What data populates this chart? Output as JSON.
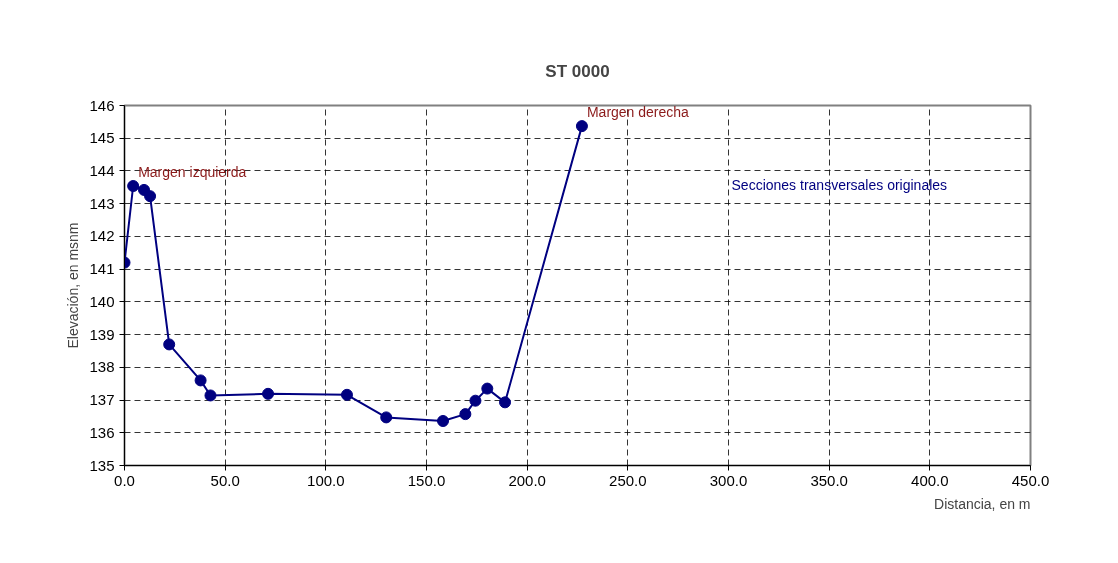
{
  "chart_data": {
    "type": "line",
    "title": "ST 0000",
    "xlabel": "Distancia, en m",
    "ylabel": "Elevación, en msnm",
    "x": [
      0,
      4.3,
      9.7,
      12.7,
      22.2,
      37.8,
      42.7,
      71.3,
      110.5,
      130,
      158.2,
      169.3,
      174.3,
      180.2,
      189,
      227.2
    ],
    "series": [
      {
        "name": "Secciones transversales originales",
        "color": "#000080",
        "values": [
          141.2,
          143.54,
          143.42,
          143.23,
          138.7,
          137.6,
          137.14,
          137.19,
          137.16,
          136.47,
          136.36,
          136.57,
          136.98,
          137.35,
          136.93,
          145.37
        ]
      }
    ],
    "xlim": [
      0,
      450
    ],
    "xticks": [
      {
        "value": 0,
        "label": "0.0"
      },
      {
        "value": 50,
        "label": "50.0"
      },
      {
        "value": 100,
        "label": "100.0"
      },
      {
        "value": 150,
        "label": "150.0"
      },
      {
        "value": 200,
        "label": "200.0"
      },
      {
        "value": 250,
        "label": "250.0"
      },
      {
        "value": 300,
        "label": "300.0"
      },
      {
        "value": 350,
        "label": "350.0"
      },
      {
        "value": 400,
        "label": "400.0"
      },
      {
        "value": 450,
        "label": "450.0"
      }
    ],
    "ylim": [
      135,
      146
    ],
    "yticks": [
      135,
      136,
      137,
      138,
      139,
      140,
      141,
      142,
      143,
      144,
      145,
      146
    ],
    "annotations": [
      {
        "text": "Margen izquierda",
        "x": 4.3,
        "y": 143.54
      },
      {
        "text": "Margen derecha",
        "x": 227.2,
        "y": 145.37
      }
    ],
    "grid": true,
    "legend": "top right",
    "marker": "circle",
    "line_style": "solid"
  }
}
